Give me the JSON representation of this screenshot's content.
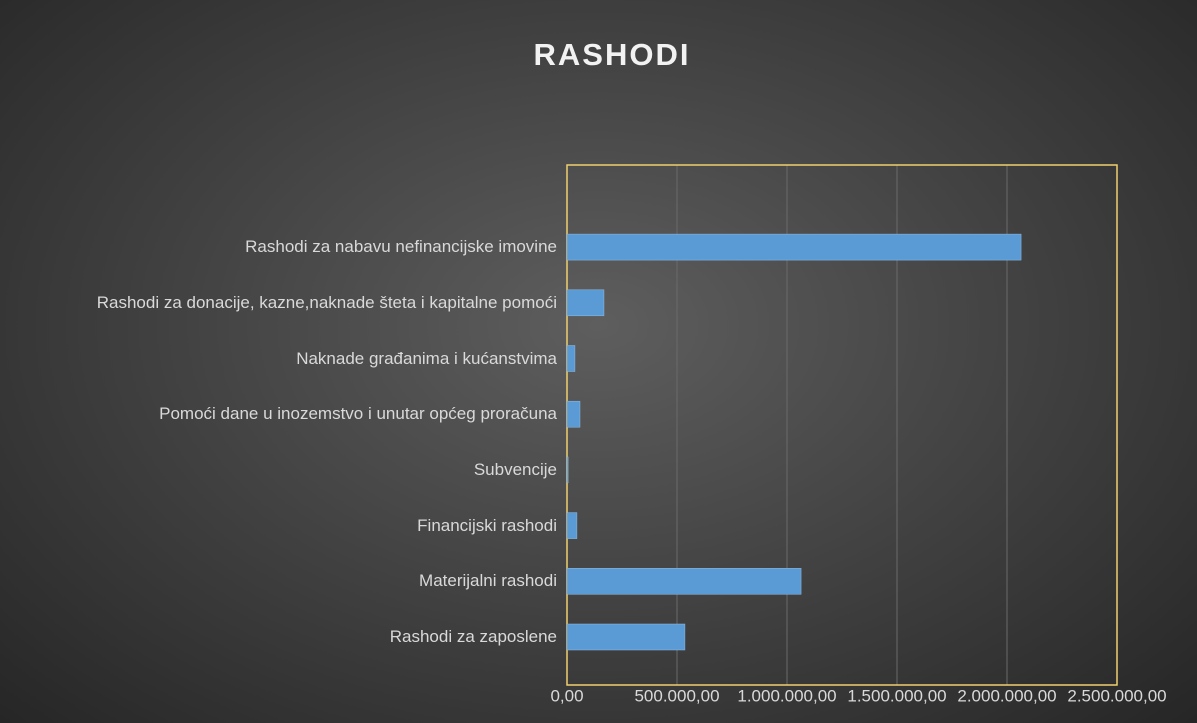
{
  "chart_data": {
    "type": "bar",
    "orientation": "horizontal",
    "title": "RASHODI",
    "categories": [
      "Rashodi za zaposlene",
      "Materijalni rashodi",
      "Financijski rashodi",
      "Subvencije",
      "Pomoći dane u inozemstvo i unutar općeg proračuna",
      "Naknade građanima i kućanstvima",
      "Rashodi za donacije, kazne,naknade šteta i kapitalne pomoći",
      "Rashodi za nabavu nefinancijske imovine"
    ],
    "values": [
      536000,
      1064000,
      45000,
      5000,
      59000,
      36000,
      168000,
      2064000
    ],
    "color": "#5b9bd5",
    "xlim": [
      0,
      2500000
    ],
    "xticks": [
      {
        "value": 0,
        "label": "0,00"
      },
      {
        "value": 500000,
        "label": "500.000,00"
      },
      {
        "value": 1000000,
        "label": "1.000.000,00"
      },
      {
        "value": 1500000,
        "label": "1.500.000,00"
      },
      {
        "value": 2000000,
        "label": "2.000.000,00"
      },
      {
        "value": 2500000,
        "label": "2.500.000,00"
      }
    ],
    "grid": true
  }
}
